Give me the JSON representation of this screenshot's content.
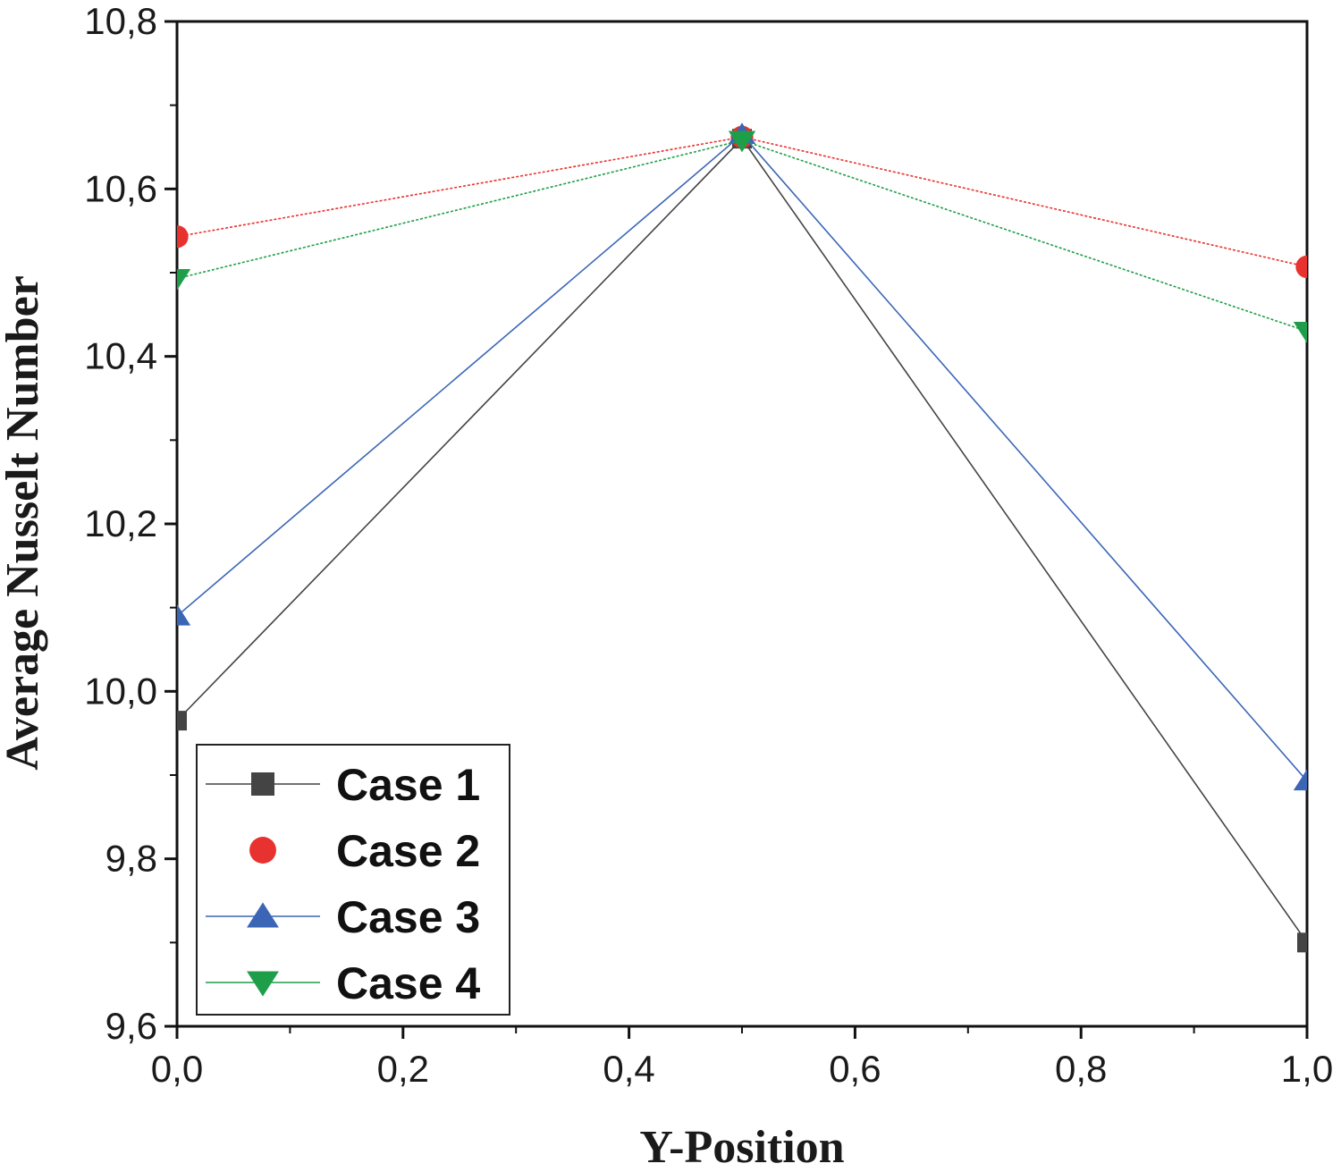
{
  "chart_data": {
    "type": "line",
    "title": "",
    "xlabel": "Y-Position",
    "ylabel": "Average Nusselt Number",
    "xlim": [
      0.0,
      1.0
    ],
    "ylim": [
      9.6,
      10.8
    ],
    "x_ticks": [
      0.0,
      0.2,
      0.4,
      0.6,
      0.8,
      1.0
    ],
    "x_tick_labels": [
      "0,0",
      "0,2",
      "0,4",
      "0,6",
      "0,8",
      "1,0"
    ],
    "y_ticks": [
      9.6,
      9.8,
      10.0,
      10.2,
      10.4,
      10.6,
      10.8
    ],
    "y_tick_labels": [
      "9,6",
      "9,8",
      "10,0",
      "10,2",
      "10,4",
      "10,6",
      "10,8"
    ],
    "grid": false,
    "legend_position": "bottom-left",
    "x": [
      0.0,
      0.5,
      1.0
    ],
    "series": [
      {
        "name": "Case 1",
        "values": [
          9.965,
          10.66,
          9.7
        ],
        "color": "#444444",
        "marker": "square"
      },
      {
        "name": "Case 2",
        "values": [
          10.543,
          10.662,
          10.507
        ],
        "color": "#e8322f",
        "marker": "circle"
      },
      {
        "name": "Case 3",
        "values": [
          10.09,
          10.665,
          9.893
        ],
        "color": "#3b66b6",
        "marker": "triangle-up"
      },
      {
        "name": "Case 4",
        "values": [
          10.493,
          10.658,
          10.43
        ],
        "color": "#1f9e4a",
        "marker": "triangle-down"
      }
    ]
  }
}
